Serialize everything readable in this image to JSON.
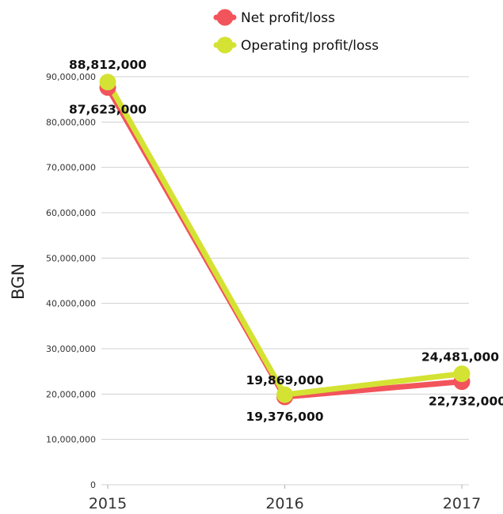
{
  "chart_data": {
    "type": "line",
    "x": [
      "2015",
      "2016",
      "2017"
    ],
    "ylabel": "BGN",
    "ylim": [
      0,
      90000000
    ],
    "yticks": [
      0,
      10000000,
      20000000,
      30000000,
      40000000,
      50000000,
      60000000,
      70000000,
      80000000,
      90000000
    ],
    "ytick_labels": [
      "0",
      "10,000,000",
      "20,000,000",
      "30,000,000",
      "40,000,000",
      "50,000,000",
      "60,000,000",
      "70,000,000",
      "80,000,000",
      "90,000,000"
    ],
    "grid": true,
    "legend_position": "top",
    "series": [
      {
        "name": "Net profit/loss",
        "color": "#f2545b",
        "values": [
          87623000,
          19376000,
          22732000
        ],
        "labels": [
          "87,623,000",
          "19,376,000",
          "22,732,000"
        ]
      },
      {
        "name": "Operating profit/loss",
        "color": "#d4e233",
        "values": [
          88812000,
          19869000,
          24481000
        ],
        "labels": [
          "88,812,000",
          "19,869,000",
          "24,481,000"
        ]
      }
    ]
  }
}
